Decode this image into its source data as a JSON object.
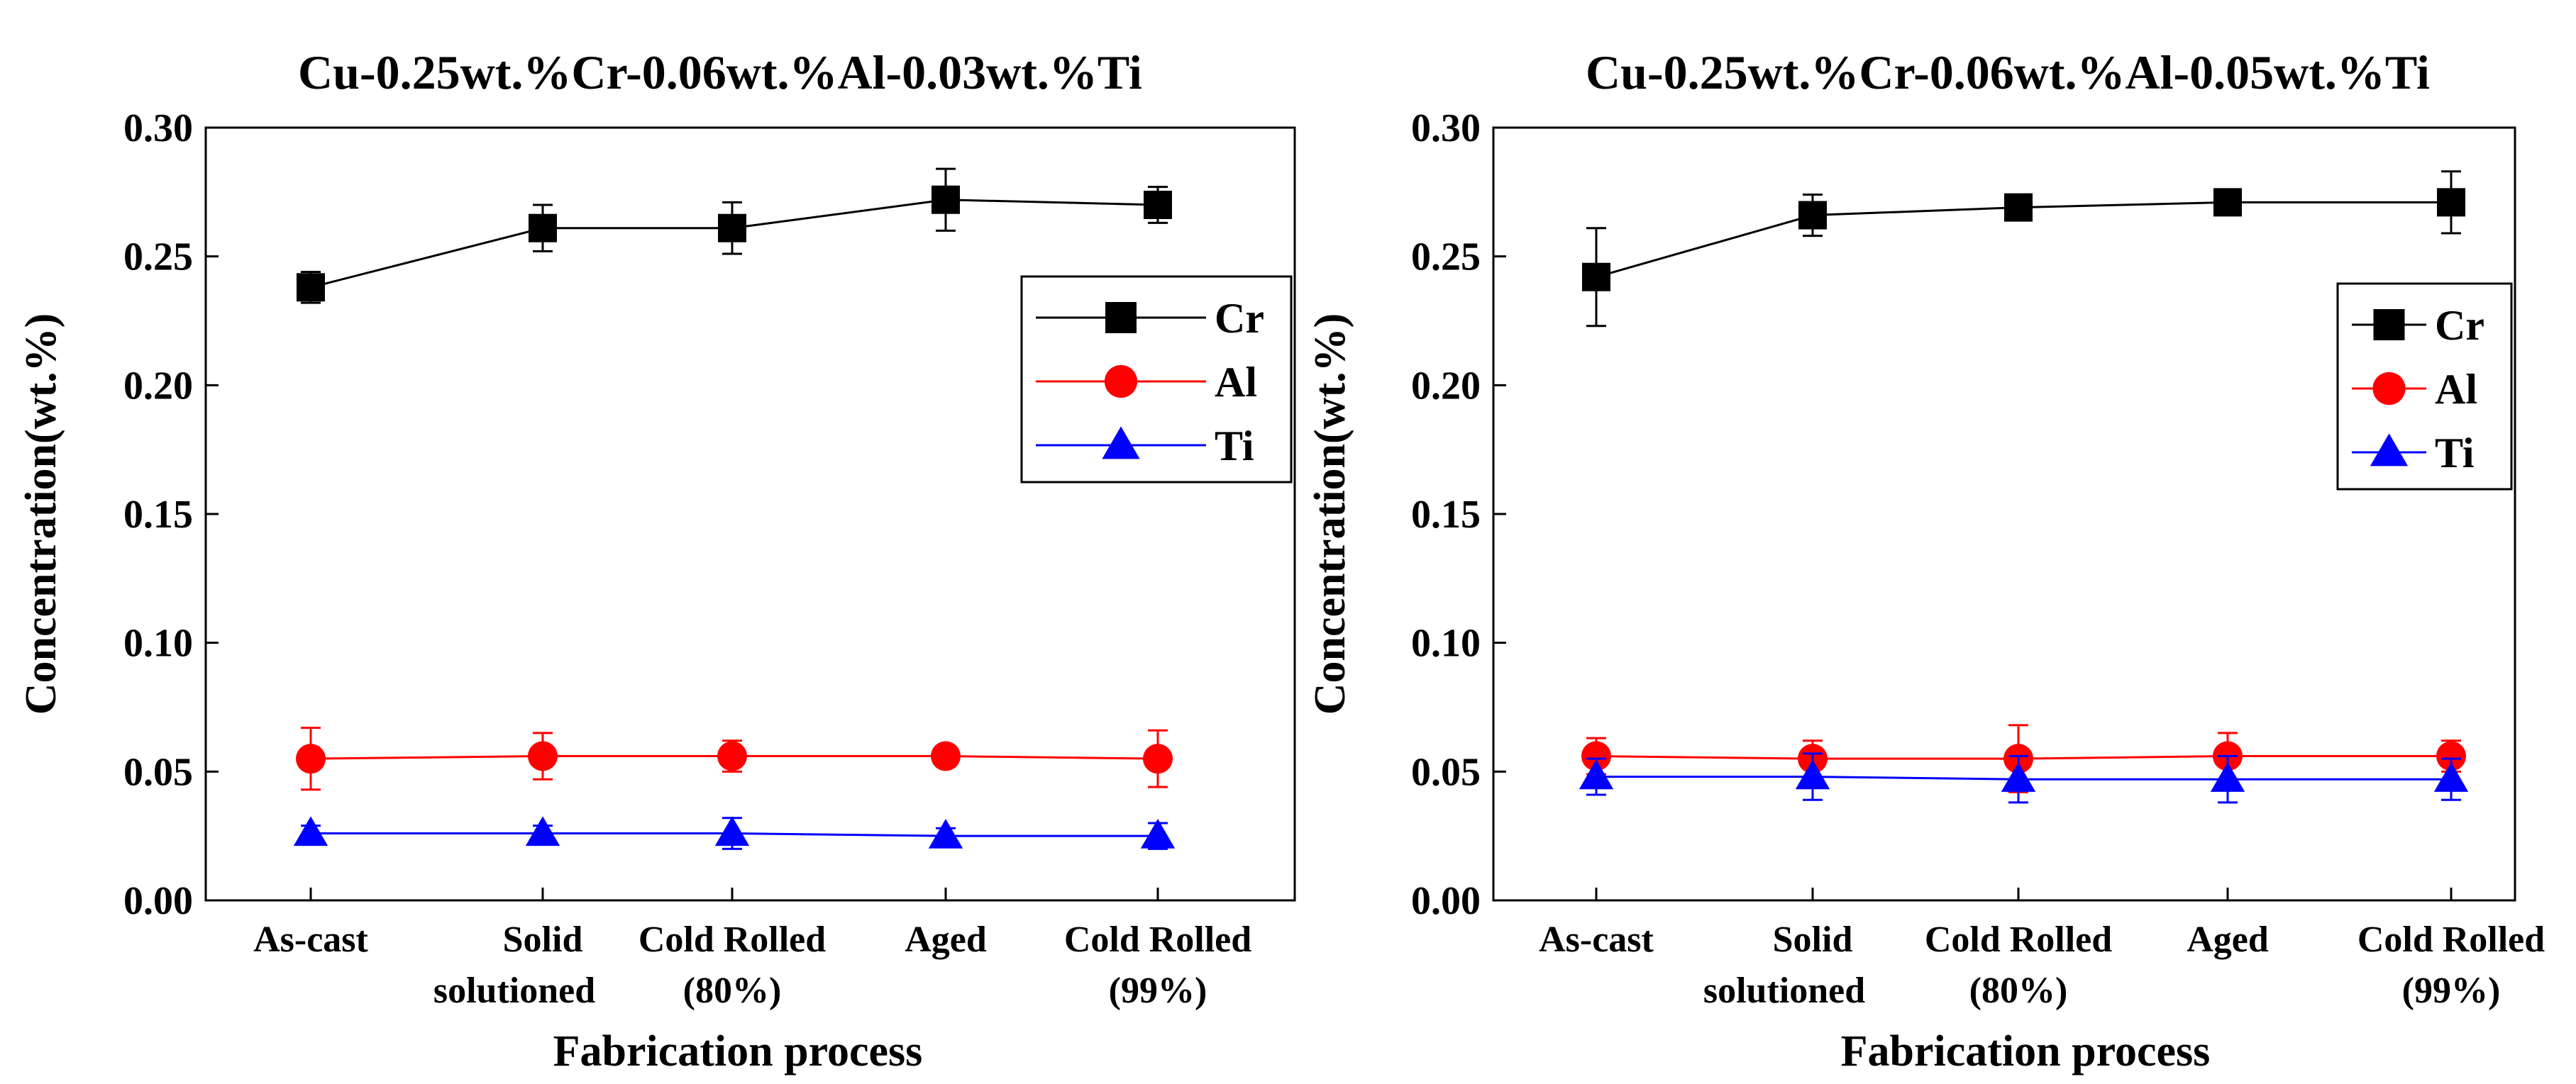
{
  "chart_data": [
    {
      "type": "line",
      "title": "Cu-0.25wt.%Cr-0.06wt.%Al-0.03wt.%Ti",
      "xlabel": "Fabrication process",
      "ylabel": "Concentration(wt.%)",
      "ylim": [
        0,
        0.3
      ],
      "yticks": [
        "0.00",
        "0.05",
        "0.10",
        "0.15",
        "0.20",
        "0.25",
        "0.30"
      ],
      "categories": [
        [
          "As-cast"
        ],
        [
          "Solid",
          "solutioned"
        ],
        [
          "Cold Rolled",
          "(80%)"
        ],
        [
          "Aged"
        ],
        [
          "Cold Rolled",
          "(99%)"
        ]
      ],
      "legend_position": "upper-right",
      "series": [
        {
          "name": "Cr",
          "color": "#000000",
          "marker": "square",
          "values": [
            0.238,
            0.261,
            0.261,
            0.272,
            0.27
          ],
          "errors": [
            0.006,
            0.009,
            0.01,
            0.012,
            0.007
          ]
        },
        {
          "name": "Al",
          "color": "#ff0000",
          "marker": "circle",
          "values": [
            0.055,
            0.056,
            0.056,
            0.056,
            0.055
          ],
          "errors": [
            0.012,
            0.009,
            0.006,
            0.004,
            0.011
          ]
        },
        {
          "name": "Ti",
          "color": "#0000ff",
          "marker": "triangle",
          "values": [
            0.026,
            0.026,
            0.026,
            0.025,
            0.025
          ],
          "errors": [
            0.003,
            0.003,
            0.006,
            0.003,
            0.005
          ]
        }
      ]
    },
    {
      "type": "line",
      "title": "Cu-0.25wt.%Cr-0.06wt.%Al-0.05wt.%Ti",
      "xlabel": "Fabrication process",
      "ylabel": "Concentration(wt.%)",
      "ylim": [
        0,
        0.3
      ],
      "yticks": [
        "0.00",
        "0.05",
        "0.10",
        "0.15",
        "0.20",
        "0.25",
        "0.30"
      ],
      "categories": [
        [
          "As-cast"
        ],
        [
          "Solid",
          "solutioned"
        ],
        [
          "Cold Rolled",
          "(80%)"
        ],
        [
          "Aged"
        ],
        [
          "Cold Rolled",
          "(99%)"
        ]
      ],
      "legend_position": "upper-right",
      "series": [
        {
          "name": "Cr",
          "color": "#000000",
          "marker": "square",
          "values": [
            0.242,
            0.266,
            0.269,
            0.271,
            0.271
          ],
          "errors": [
            0.019,
            0.008,
            0.004,
            0.004,
            0.012
          ]
        },
        {
          "name": "Al",
          "color": "#ff0000",
          "marker": "circle",
          "values": [
            0.056,
            0.055,
            0.055,
            0.056,
            0.056
          ],
          "errors": [
            0.007,
            0.007,
            0.013,
            0.009,
            0.006
          ]
        },
        {
          "name": "Ti",
          "color": "#0000ff",
          "marker": "triangle",
          "values": [
            0.048,
            0.048,
            0.047,
            0.047,
            0.047
          ],
          "errors": [
            0.007,
            0.009,
            0.009,
            0.009,
            0.008
          ]
        }
      ]
    }
  ]
}
